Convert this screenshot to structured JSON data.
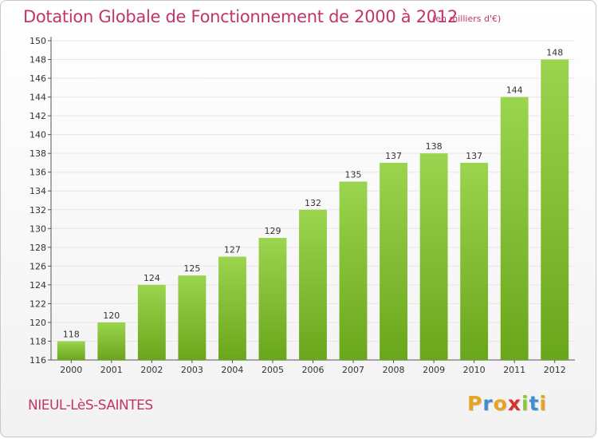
{
  "header": {
    "title": "Dotation Globale de Fonctionnement de 2000 à 2012",
    "unit": "(en milliers d'€)"
  },
  "footer": {
    "commune": "NIEUL-LèS-SAINTES",
    "logo_text": "Proxiti",
    "logo_colors": [
      "#e8a321",
      "#3e8ed0",
      "#e8a321",
      "#d7322c",
      "#8dc63f",
      "#3e8ed0",
      "#e8a321"
    ]
  },
  "colors": {
    "title": "#c0366b",
    "bar_top": "#9bd44e",
    "bar_bottom": "#6aa61c",
    "axis_text": "#333333",
    "grid": "#e6e6e6"
  },
  "chart_data": {
    "type": "bar",
    "title": "Dotation Globale de Fonctionnement de 2000 à 2012",
    "subtitle": "(en milliers d'€)",
    "categories": [
      "2000",
      "2001",
      "2002",
      "2003",
      "2004",
      "2005",
      "2006",
      "2007",
      "2008",
      "2009",
      "2010",
      "2011",
      "2012"
    ],
    "values": [
      118,
      120,
      124,
      125,
      127,
      129,
      132,
      135,
      137,
      138,
      137,
      144,
      148
    ],
    "ylim": [
      116,
      150
    ],
    "yticks": [
      116,
      118,
      120,
      122,
      124,
      126,
      128,
      130,
      132,
      134,
      136,
      138,
      140,
      142,
      144,
      146,
      148,
      150
    ],
    "grid": true,
    "legend": "none"
  }
}
